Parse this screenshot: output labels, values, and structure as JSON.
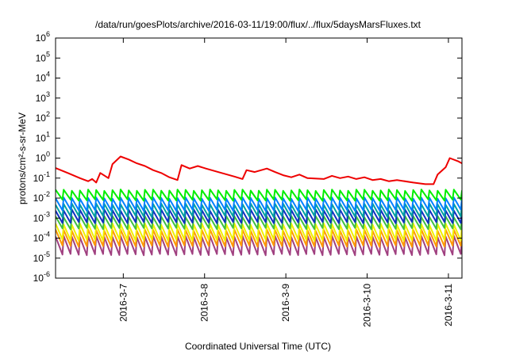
{
  "chart_data": {
    "type": "line",
    "title": "/data/run/goesPlots/archive/2016-03-11/19:00/flux/../flux/5daysMarsFluxes.txt",
    "xlabel": "Coordinated Universal Time (UTC)",
    "ylabel": "protons/cm²-s-sr-MeV",
    "yscale": "log",
    "ylim": [
      1e-06,
      1000000.0
    ],
    "xlim_days": [
      "2016-03-06 04:00",
      "2016-03-11 20:00"
    ],
    "y_ticks": [
      {
        "base": "10",
        "exp": "-6",
        "value": 1e-06
      },
      {
        "base": "10",
        "exp": "-5",
        "value": 1e-05
      },
      {
        "base": "10",
        "exp": "-4",
        "value": 0.0001
      },
      {
        "base": "10",
        "exp": "-3",
        "value": 0.001
      },
      {
        "base": "10",
        "exp": "-2",
        "value": 0.01
      },
      {
        "base": "10",
        "exp": "-1",
        "value": 0.1
      },
      {
        "base": "10",
        "exp": "0",
        "value": 1
      },
      {
        "base": "10",
        "exp": "1",
        "value": 10
      },
      {
        "base": "10",
        "exp": "2",
        "value": 100
      },
      {
        "base": "10",
        "exp": "3",
        "value": 1000
      },
      {
        "base": "10",
        "exp": "4",
        "value": 10000
      },
      {
        "base": "10",
        "exp": "5",
        "value": 100000
      },
      {
        "base": "10",
        "exp": "6",
        "value": 1000000
      }
    ],
    "x_ticks": [
      "2016-3-7",
      "2016-3-8",
      "2016-3-9",
      "2016-3-10",
      "2016-3-11"
    ],
    "grid": false,
    "legend": "none",
    "series": [
      {
        "color": "#ee0000",
        "points": [
          [
            0.0,
            0.32
          ],
          [
            0.15,
            0.18
          ],
          [
            0.3,
            0.1
          ],
          [
            0.4,
            0.07
          ],
          [
            0.45,
            0.09
          ],
          [
            0.5,
            0.06
          ],
          [
            0.55,
            0.18
          ],
          [
            0.65,
            0.1
          ],
          [
            0.7,
            0.5
          ],
          [
            0.8,
            1.2
          ],
          [
            0.9,
            0.85
          ],
          [
            1.0,
            0.55
          ],
          [
            1.1,
            0.4
          ],
          [
            1.2,
            0.25
          ],
          [
            1.3,
            0.18
          ],
          [
            1.4,
            0.11
          ],
          [
            1.5,
            0.08
          ],
          [
            1.55,
            0.45
          ],
          [
            1.65,
            0.3
          ],
          [
            1.75,
            0.4
          ],
          [
            1.85,
            0.3
          ],
          [
            2.0,
            0.2
          ],
          [
            2.2,
            0.12
          ],
          [
            2.3,
            0.09
          ],
          [
            2.35,
            0.25
          ],
          [
            2.45,
            0.2
          ],
          [
            2.6,
            0.3
          ],
          [
            2.7,
            0.2
          ],
          [
            2.8,
            0.14
          ],
          [
            2.9,
            0.11
          ],
          [
            3.0,
            0.15
          ],
          [
            3.1,
            0.1
          ],
          [
            3.3,
            0.09
          ],
          [
            3.4,
            0.13
          ],
          [
            3.5,
            0.1
          ],
          [
            3.6,
            0.12
          ],
          [
            3.7,
            0.09
          ],
          [
            3.8,
            0.11
          ],
          [
            3.9,
            0.08
          ],
          [
            4.0,
            0.09
          ],
          [
            4.1,
            0.07
          ],
          [
            4.2,
            0.08
          ],
          [
            4.4,
            0.06
          ],
          [
            4.55,
            0.05
          ],
          [
            4.65,
            0.05
          ],
          [
            4.7,
            0.15
          ],
          [
            4.8,
            0.35
          ],
          [
            4.85,
            1.0
          ],
          [
            4.95,
            0.7
          ],
          [
            5.0,
            0.55
          ]
        ]
      },
      {
        "color": "#00ee00",
        "max": 0.025,
        "min": 0.008
      },
      {
        "color": "#0080ff",
        "max": 0.01,
        "min": 0.0025
      },
      {
        "color": "#00a0a0",
        "max": 0.005,
        "min": 0.0012
      },
      {
        "color": "#1030c0",
        "max": 0.0025,
        "min": 0.0006
      },
      {
        "color": "#40c040",
        "max": 0.0012,
        "min": 0.0003
      },
      {
        "color": "#f0f000",
        "max": 0.0005,
        "min": 8e-05
      },
      {
        "color": "#ff9900",
        "max": 0.00025,
        "min": 4e-05
      },
      {
        "color": "#a04080",
        "max": 0.00012,
        "min": 1.5e-05
      }
    ]
  }
}
